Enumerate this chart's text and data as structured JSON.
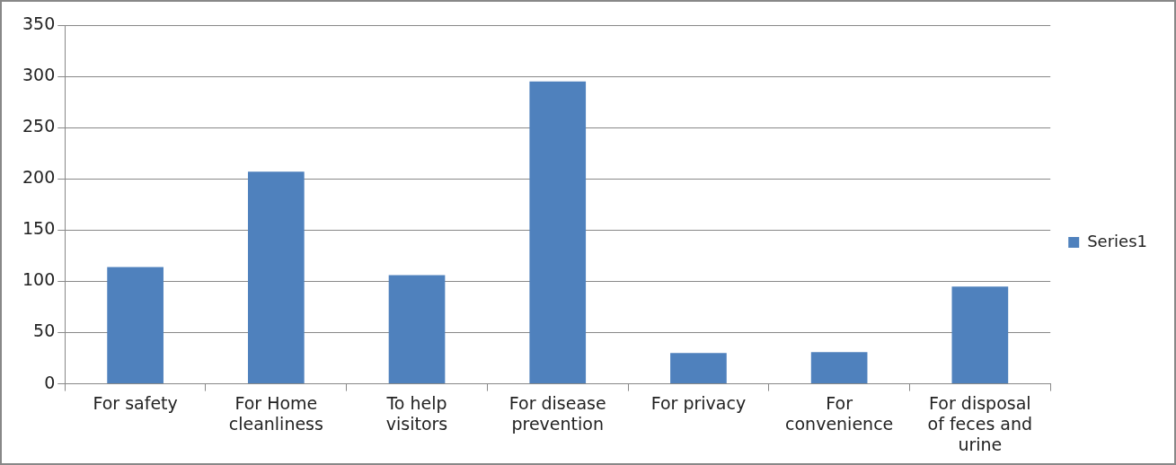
{
  "chart_data": {
    "type": "bar",
    "categories": [
      "For safety",
      "For Home cleanliness",
      "To help visitors",
      "For disease prevention",
      "For privacy",
      "For convenience",
      "For disposal of feces and urine"
    ],
    "series": [
      {
        "name": "Series1",
        "color": "#4f81bd",
        "values": [
          114,
          207,
          106,
          295,
          30,
          31,
          95
        ]
      }
    ],
    "ylim": [
      0,
      350
    ],
    "yticks": [
      0,
      50,
      100,
      150,
      200,
      250,
      300,
      350
    ],
    "grid": "y",
    "legend": "right"
  }
}
